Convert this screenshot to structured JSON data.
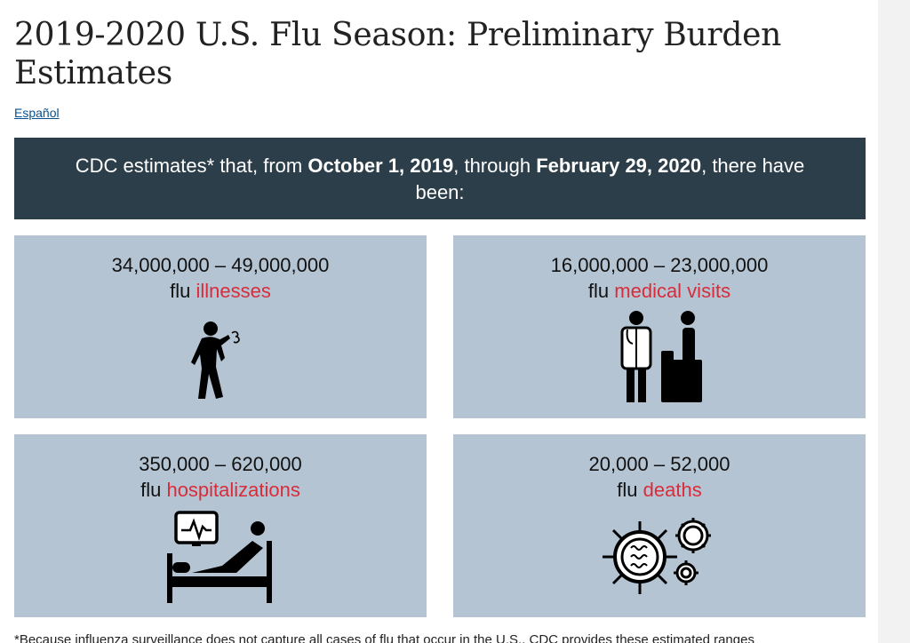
{
  "page": {
    "title": "2019-2020 U.S. Flu Season: Preliminary Burden Estimates",
    "language_link": "Español"
  },
  "banner": {
    "prefix": "CDC estimates* that, from ",
    "start_date": "October 1, 2019",
    "middle": ", through ",
    "end_date": "February 29, 2020",
    "suffix": ", there have been:"
  },
  "cards": [
    {
      "range": "34,000,000 – 49,000,000",
      "prefix": "flu ",
      "accent": "illnesses",
      "icon": "sick-person-icon"
    },
    {
      "range": "16,000,000 – 23,000,000",
      "prefix": "flu ",
      "accent": "medical visits",
      "icon": "doctor-patient-icon"
    },
    {
      "range": "350,000 – 620,000",
      "prefix": "flu ",
      "accent": "hospitalizations",
      "icon": "hospital-bed-icon"
    },
    {
      "range": "20,000 – 52,000",
      "prefix": "flu ",
      "accent": "deaths",
      "icon": "virus-icon"
    }
  ],
  "footnote": "*Because influenza surveillance does not capture all cases of flu that occur in the U.S., CDC provides these estimated ranges",
  "colors": {
    "banner_bg": "#2c3e4a",
    "card_bg": "#b5c4d3",
    "accent_red": "#d92c3a",
    "link_blue": "#075290"
  }
}
